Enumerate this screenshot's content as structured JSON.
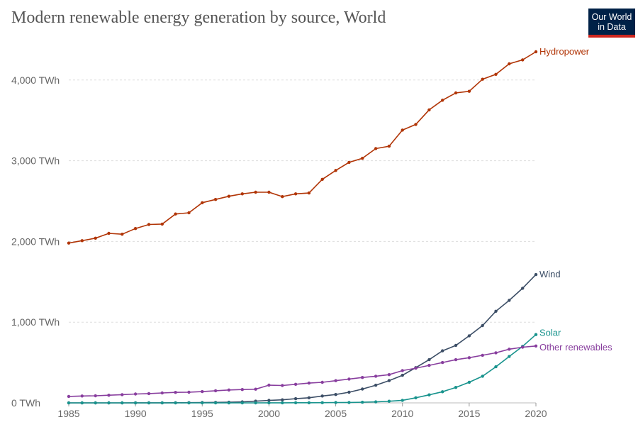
{
  "title": "Modern renewable energy generation by source, World",
  "logo": {
    "line1": "Our World",
    "line2": "in Data"
  },
  "chart_data": {
    "type": "line",
    "title": "Modern renewable energy generation by source, World",
    "xlim": [
      1985,
      2020
    ],
    "ylim": [
      0,
      4400
    ],
    "unit": "TWh",
    "y_ticks": [
      {
        "value": 0,
        "label": "0 TWh"
      },
      {
        "value": 1000,
        "label": "1,000 TWh"
      },
      {
        "value": 2000,
        "label": "2,000 TWh"
      },
      {
        "value": 3000,
        "label": "3,000 TWh"
      },
      {
        "value": 4000,
        "label": "4,000 TWh"
      }
    ],
    "x_ticks": [
      1985,
      1990,
      1995,
      2000,
      2005,
      2010,
      2015,
      2020
    ],
    "grid": "horizontal-dashed",
    "legend": "inline-right",
    "x": [
      1985,
      1986,
      1987,
      1988,
      1989,
      1990,
      1991,
      1992,
      1993,
      1994,
      1995,
      1996,
      1997,
      1998,
      1999,
      2000,
      2001,
      2002,
      2003,
      2004,
      2005,
      2006,
      2007,
      2008,
      2009,
      2010,
      2011,
      2012,
      2013,
      2014,
      2015,
      2016,
      2017,
      2018,
      2019,
      2020
    ],
    "series": [
      {
        "name": "Hydropower",
        "color": "#b13507",
        "values": [
          1980,
          2010,
          2040,
          2100,
          2090,
          2160,
          2210,
          2215,
          2340,
          2355,
          2480,
          2520,
          2560,
          2590,
          2610,
          2610,
          2555,
          2590,
          2600,
          2770,
          2880,
          2980,
          3030,
          3150,
          3180,
          3380,
          3450,
          3630,
          3750,
          3840,
          3860,
          4010,
          4070,
          4200,
          4250,
          4350
        ]
      },
      {
        "name": "Wind",
        "color": "#3c4e66",
        "values": [
          0,
          0,
          0,
          0,
          0,
          1,
          1,
          1,
          2,
          3,
          4,
          6,
          8,
          12,
          21,
          31,
          38,
          52,
          63,
          85,
          104,
          132,
          171,
          219,
          276,
          342,
          437,
          535,
          645,
          712,
          831,
          958,
          1135,
          1270,
          1420,
          1590
        ]
      },
      {
        "name": "Solar",
        "color": "#18938d",
        "values": [
          0,
          0,
          0,
          0,
          0,
          0,
          0,
          0,
          0,
          0,
          0,
          0,
          0,
          0,
          0,
          1,
          1,
          2,
          2,
          3,
          4,
          5,
          8,
          12,
          20,
          32,
          63,
          99,
          138,
          192,
          256,
          330,
          447,
          575,
          700,
          846
        ]
      },
      {
        "name": "Other renewables",
        "color": "#883e9e",
        "values": [
          80,
          85,
          88,
          95,
          102,
          110,
          115,
          123,
          130,
          133,
          140,
          150,
          160,
          165,
          170,
          220,
          215,
          230,
          245,
          255,
          275,
          295,
          315,
          330,
          350,
          400,
          430,
          465,
          500,
          535,
          560,
          590,
          620,
          665,
          690,
          705
        ]
      }
    ]
  }
}
